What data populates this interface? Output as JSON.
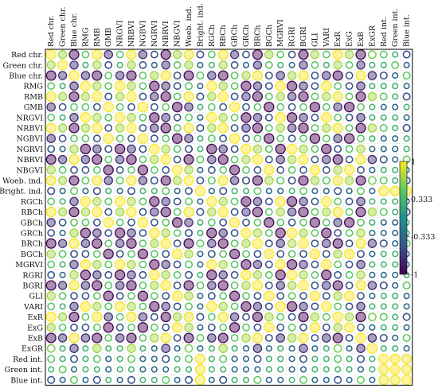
{
  "chart_data": {
    "type": "heatmap",
    "variables": [
      "Red chr.",
      "Green chr.",
      "Blue chr.",
      "RMG",
      "RMB",
      "GMB",
      "NRGVI",
      "NRBVI",
      "NGBVI",
      "NGRVI",
      "NBRVI",
      "NBGVI",
      "Woeb. ind.",
      "Bright. ind.",
      "RGCh",
      "RBCh",
      "GBCh",
      "GRCh",
      "BRCh",
      "BGCh",
      "MGRVI",
      "RGRI",
      "BGRI",
      "GLI",
      "VARI",
      "ExR",
      "ExG",
      "ExB",
      "ExGR",
      "Red int.",
      "Green int.",
      "Blue int."
    ],
    "color_scale": {
      "min": -1,
      "max": 1,
      "ticks": [
        1,
        0.333,
        -0.333,
        -1
      ],
      "tick_labels": [
        "1",
        "0.333",
        "-0.333",
        "-1"
      ],
      "colors": [
        "#440154",
        "#3b528b",
        "#21918c",
        "#5ec962",
        "#fde725"
      ]
    },
    "insignificant_marker": "×",
    "values": [
      [
        1,
        0.71,
        -0.97,
        0.47,
        0.97,
        -0.73,
        0.47,
        0.97,
        -0.73,
        -0.47,
        -0.97,
        0.73,
        0.95,
        -0.5,
        0.47,
        0.97,
        -0.71,
        -0.47,
        -0.97,
        0.73,
        0.47,
        -0.47,
        -0.97,
        0.73,
        0.47,
        1,
        0.73,
        -0.97,
        0.6,
        0.5,
        0.3,
        -0.5
      ],
      [
        0.71,
        1,
        -0.71,
        0.3,
        0.71,
        -0.47,
        0.3,
        0.71,
        -0.47,
        -0.3,
        -0.71,
        0.47,
        0.71,
        -0.3,
        0.3,
        0.71,
        -0.47,
        -0.3,
        -0.71,
        0.47,
        0.3,
        -0.3,
        -0.71,
        0.47,
        0.3,
        0.71,
        0.47,
        -0.71,
        0.3,
        0.3,
        0.5,
        -0.3
      ],
      [
        -0.97,
        -0.71,
        1,
        -0.73,
        -0.97,
        0.47,
        -0.73,
        -0.97,
        0.47,
        0.73,
        0.97,
        -0.47,
        -0.95,
        0.5,
        -0.73,
        -0.97,
        0.47,
        0.73,
        0.97,
        -0.47,
        -0.73,
        0.73,
        0.97,
        -0.47,
        -0.73,
        -0.97,
        -0.47,
        0.97,
        -0.73,
        -0.5,
        -0.3,
        0.5
      ],
      [
        0.47,
        0.3,
        -0.73,
        1,
        0.73,
        0.47,
        1,
        0.73,
        0.47,
        -1,
        -0.73,
        -0.47,
        0.5,
        -0.3,
        1,
        0.73,
        0.47,
        -1,
        -0.73,
        -0.47,
        1,
        -1,
        -0.73,
        -0.47,
        1,
        0.47,
        -0.47,
        -0.73,
        0.3,
        0.3,
        0.3,
        -0.3
      ],
      [
        0.97,
        0.71,
        -0.97,
        0.73,
        1,
        -0.47,
        0.73,
        1,
        -0.47,
        -0.73,
        -1,
        0.47,
        0.97,
        -0.5,
        0.73,
        1,
        -0.47,
        -0.73,
        -1,
        0.47,
        0.73,
        -0.73,
        -1,
        0.47,
        0.73,
        0.97,
        0.47,
        -0.97,
        0.73,
        0.5,
        0.3,
        -0.5
      ],
      [
        -0.73,
        -0.47,
        0.47,
        0.47,
        -0.47,
        1,
        0.47,
        -0.47,
        1,
        -0.47,
        0.47,
        -1,
        -0.73,
        0.3,
        0.47,
        -0.47,
        1,
        -0.47,
        0.47,
        -1,
        0.47,
        -0.47,
        0.47,
        -1,
        0.47,
        -0.73,
        -1,
        0.47,
        0.3,
        -0.3,
        -0.3,
        0.3
      ],
      [
        0.47,
        0.3,
        -0.73,
        1,
        0.73,
        0.47,
        1,
        0.73,
        0.47,
        -1,
        -0.73,
        -0.47,
        0.5,
        -0.3,
        1,
        0.73,
        0.47,
        -1,
        -0.73,
        -0.47,
        1,
        -1,
        -0.73,
        -0.47,
        1,
        0.47,
        -0.47,
        -0.73,
        0.3,
        0.3,
        0.3,
        -0.3
      ],
      [
        0.97,
        0.71,
        -0.97,
        0.73,
        1,
        -0.47,
        0.73,
        1,
        -0.47,
        -0.73,
        -1,
        0.47,
        0.97,
        -0.5,
        0.73,
        1,
        -0.47,
        -0.73,
        -1,
        0.47,
        0.73,
        -0.73,
        -1,
        0.47,
        0.73,
        0.97,
        0.47,
        -0.97,
        0.73,
        0.5,
        0.3,
        -0.5
      ],
      [
        -0.73,
        -0.47,
        0.47,
        0.47,
        -0.47,
        1,
        0.47,
        -0.47,
        1,
        -0.47,
        0.47,
        -1,
        -0.73,
        0.3,
        0.47,
        -0.47,
        1,
        -0.47,
        0.47,
        -1,
        0.47,
        -0.47,
        0.47,
        -1,
        0.47,
        -0.73,
        -1,
        0.47,
        0.3,
        -0.3,
        -0.3,
        0.3
      ],
      [
        -0.47,
        -0.3,
        0.73,
        -1,
        -0.73,
        -0.47,
        -1,
        -0.73,
        -0.47,
        1,
        0.73,
        0.47,
        -0.5,
        0.3,
        -1,
        -0.73,
        -0.47,
        1,
        0.73,
        0.47,
        -1,
        1,
        0.73,
        0.47,
        -1,
        -0.47,
        0.47,
        0.73,
        -0.3,
        -0.3,
        -0.3,
        0.3
      ],
      [
        -0.97,
        -0.71,
        0.97,
        -0.73,
        -1,
        0.47,
        -0.73,
        -1,
        0.47,
        0.73,
        1,
        -0.47,
        -0.97,
        0.5,
        -0.73,
        -1,
        0.47,
        0.73,
        1,
        -0.47,
        -0.73,
        0.73,
        1,
        -0.47,
        -0.73,
        -0.97,
        -0.47,
        0.97,
        -0.73,
        -0.5,
        -0.3,
        0.5
      ],
      [
        0.73,
        0.47,
        -0.47,
        -0.47,
        0.47,
        -1,
        -0.47,
        0.47,
        -1,
        0.47,
        -0.47,
        1,
        0.73,
        -0.3,
        -0.47,
        0.47,
        -1,
        0.47,
        -0.47,
        1,
        -0.47,
        0.47,
        -0.47,
        1,
        -0.47,
        0.73,
        1,
        -0.47,
        -0.3,
        0.3,
        0.3,
        -0.3
      ],
      [
        0.95,
        0.71,
        -0.95,
        0.5,
        0.97,
        -0.73,
        0.5,
        0.97,
        -0.73,
        -0.5,
        -0.97,
        0.73,
        1,
        -0.47,
        0.5,
        0.97,
        -0.73,
        -0.5,
        -0.97,
        0.73,
        0.5,
        -0.5,
        -0.97,
        0.73,
        0.5,
        0.95,
        0.73,
        -0.95,
        0.6,
        0.5,
        0.3,
        -0.5
      ],
      [
        -0.5,
        -0.3,
        0.5,
        -0.3,
        -0.5,
        0.3,
        -0.3,
        -0.5,
        0.3,
        0.3,
        0.5,
        -0.3,
        -0.47,
        1,
        -0.3,
        -0.5,
        0.3,
        0.3,
        0.5,
        -0.3,
        -0.3,
        0.3,
        0.5,
        -0.3,
        -0.3,
        -0.5,
        -0.3,
        0.5,
        -0.3,
        0.97,
        0.97,
        0.97
      ],
      [
        0.47,
        0.3,
        -0.73,
        1,
        0.73,
        0.47,
        1,
        0.73,
        0.47,
        -1,
        -0.73,
        -0.47,
        0.5,
        -0.3,
        1,
        0.73,
        0.47,
        -1,
        -0.73,
        -0.47,
        1,
        -1,
        -0.73,
        -0.47,
        1,
        0.47,
        -0.47,
        -0.73,
        0.3,
        0.3,
        0.3,
        -0.3
      ],
      [
        0.97,
        0.71,
        -0.97,
        0.73,
        1,
        -0.47,
        0.73,
        1,
        -0.47,
        -0.73,
        -1,
        0.47,
        0.97,
        -0.5,
        0.73,
        1,
        -0.47,
        -0.73,
        -1,
        0.47,
        0.73,
        -0.73,
        -1,
        0.47,
        0.73,
        0.97,
        0.47,
        -0.97,
        0.73,
        0.5,
        0.3,
        -0.5
      ],
      [
        -0.71,
        -0.47,
        0.47,
        0.47,
        -0.47,
        1,
        0.47,
        -0.47,
        1,
        -0.47,
        0.47,
        -1,
        -0.73,
        0.3,
        0.47,
        -0.47,
        1,
        -0.47,
        0.47,
        -1,
        0.47,
        -0.47,
        0.47,
        -1,
        0.47,
        -0.73,
        -1,
        0.47,
        0.3,
        -0.3,
        -0.3,
        0.3
      ],
      [
        -0.47,
        -0.3,
        0.73,
        -1,
        -0.73,
        -0.47,
        -1,
        -0.73,
        -0.47,
        1,
        0.73,
        0.47,
        -0.5,
        0.3,
        -1,
        -0.73,
        -0.47,
        1,
        0.73,
        0.47,
        -1,
        1,
        0.73,
        0.47,
        -1,
        -0.47,
        0.47,
        0.73,
        -0.3,
        -0.3,
        -0.3,
        0.3
      ],
      [
        -0.97,
        -0.71,
        0.97,
        -0.73,
        -1,
        0.47,
        -0.73,
        -1,
        0.47,
        0.73,
        1,
        -0.47,
        -0.97,
        0.5,
        -0.73,
        -1,
        0.47,
        0.73,
        1,
        -0.47,
        -0.73,
        0.73,
        1,
        -0.47,
        -0.73,
        -0.97,
        -0.47,
        0.97,
        -0.73,
        -0.5,
        -0.3,
        0.5
      ],
      [
        0.73,
        0.47,
        -0.47,
        -0.47,
        0.47,
        -1,
        -0.47,
        0.47,
        -1,
        0.47,
        -0.47,
        1,
        0.73,
        -0.3,
        -0.47,
        0.47,
        -1,
        0.47,
        -0.47,
        1,
        -0.47,
        0.47,
        -0.47,
        1,
        -0.47,
        0.73,
        1,
        -0.47,
        -0.3,
        0.3,
        0.3,
        -0.3
      ],
      [
        0.47,
        0.3,
        -0.73,
        1,
        0.73,
        0.47,
        1,
        0.73,
        0.47,
        -1,
        -0.73,
        -0.47,
        0.5,
        -0.3,
        1,
        0.73,
        0.47,
        -1,
        -0.73,
        -0.47,
        1,
        -1,
        -0.73,
        -0.47,
        1,
        0.47,
        -0.47,
        -0.73,
        0.3,
        0.3,
        0.3,
        -0.3
      ],
      [
        -0.47,
        -0.3,
        0.73,
        -1,
        -0.73,
        -0.47,
        -1,
        -0.73,
        -0.47,
        1,
        0.73,
        0.47,
        -0.5,
        0.3,
        -1,
        -0.73,
        -0.47,
        1,
        0.73,
        0.47,
        -1,
        1,
        0.73,
        0.47,
        -1,
        -0.47,
        0.47,
        0.73,
        -0.3,
        -0.3,
        -0.3,
        0.3
      ],
      [
        -0.97,
        -0.71,
        0.97,
        -0.73,
        -1,
        0.47,
        -0.73,
        -1,
        0.47,
        0.73,
        1,
        -0.47,
        -0.97,
        0.5,
        -0.73,
        -1,
        0.47,
        0.73,
        1,
        -0.47,
        -0.73,
        0.73,
        1,
        -0.47,
        -0.73,
        -0.97,
        -0.47,
        0.97,
        -0.73,
        -0.5,
        -0.3,
        0.5
      ],
      [
        0.73,
        0.47,
        -0.47,
        -0.47,
        0.47,
        -1,
        -0.47,
        0.47,
        -1,
        0.47,
        -0.47,
        1,
        0.73,
        -0.3,
        -0.47,
        0.47,
        -1,
        0.47,
        -0.47,
        1,
        -0.47,
        0.47,
        -0.47,
        1,
        -0.47,
        0.73,
        1,
        -0.47,
        -0.3,
        0.3,
        0.3,
        -0.3
      ],
      [
        0.47,
        0.3,
        -0.73,
        1,
        0.73,
        0.47,
        1,
        0.73,
        0.47,
        -1,
        -0.73,
        -0.47,
        0.5,
        -0.3,
        1,
        0.73,
        0.47,
        -1,
        -0.73,
        -0.47,
        1,
        -1,
        -0.73,
        -0.47,
        1,
        0.47,
        -0.47,
        -0.73,
        0.3,
        0.3,
        0.3,
        -0.3
      ],
      [
        1,
        0.71,
        -0.97,
        0.47,
        0.97,
        -0.73,
        0.47,
        0.97,
        -0.73,
        -0.47,
        -0.97,
        0.73,
        0.95,
        -0.5,
        0.47,
        0.97,
        -0.73,
        -0.47,
        -0.97,
        0.73,
        0.47,
        -0.47,
        -0.97,
        0.73,
        0.47,
        1,
        0.73,
        -0.97,
        0.6,
        0.5,
        0.3,
        -0.5
      ],
      [
        0.73,
        0.47,
        -0.47,
        -0.47,
        0.47,
        -1,
        -0.47,
        0.47,
        -1,
        0.47,
        -0.47,
        1,
        0.73,
        -0.3,
        -0.47,
        0.47,
        -1,
        0.47,
        -0.47,
        1,
        -0.47,
        0.47,
        -0.47,
        1,
        -0.47,
        0.73,
        1,
        -0.47,
        -0.3,
        0.3,
        0.3,
        -0.3
      ],
      [
        -0.97,
        -0.71,
        0.97,
        -0.73,
        -0.97,
        0.47,
        -0.73,
        -0.97,
        0.47,
        0.73,
        0.97,
        -0.47,
        -0.95,
        0.5,
        -0.73,
        -0.97,
        0.47,
        0.73,
        0.97,
        -0.47,
        -0.73,
        0.73,
        0.97,
        -0.47,
        -0.73,
        -0.97,
        -0.47,
        1,
        -0.73,
        -0.5,
        -0.3,
        0.5
      ],
      [
        0.6,
        0.3,
        -0.73,
        0.3,
        0.73,
        0.3,
        0.3,
        0.73,
        0.3,
        -0.3,
        -0.73,
        -0.3,
        0.6,
        -0.3,
        0.3,
        0.73,
        0.3,
        -0.3,
        -0.73,
        -0.3,
        0.3,
        -0.3,
        -0.73,
        -0.3,
        0.3,
        0.6,
        -0.3,
        -0.73,
        1,
        0.3,
        0.3,
        -0.3
      ],
      [
        0.5,
        0.3,
        -0.5,
        0.3,
        0.5,
        -0.3,
        0.3,
        0.5,
        -0.3,
        -0.3,
        -0.5,
        0.3,
        0.5,
        0.97,
        0.3,
        0.5,
        -0.3,
        -0.3,
        -0.5,
        0.3,
        0.3,
        -0.3,
        -0.5,
        0.3,
        0.3,
        0.5,
        0.3,
        -0.5,
        0.3,
        1,
        0.97,
        0.95
      ],
      [
        0.3,
        0.5,
        -0.3,
        0.3,
        0.3,
        -0.3,
        0.3,
        0.3,
        -0.3,
        -0.3,
        -0.3,
        0.3,
        0.3,
        0.97,
        0.3,
        0.3,
        -0.3,
        -0.3,
        -0.3,
        0.3,
        0.3,
        -0.3,
        -0.3,
        0.3,
        0.3,
        0.3,
        0.3,
        -0.3,
        0.3,
        0.97,
        1,
        0.97
      ],
      [
        -0.5,
        -0.3,
        0.5,
        -0.3,
        -0.5,
        0.3,
        -0.3,
        -0.5,
        0.3,
        0.3,
        0.5,
        -0.3,
        -0.5,
        0.97,
        -0.3,
        -0.5,
        0.3,
        0.3,
        0.5,
        -0.3,
        -0.3,
        0.3,
        0.5,
        -0.3,
        -0.3,
        -0.5,
        -0.3,
        0.5,
        -0.3,
        0.95,
        0.97,
        1
      ]
    ]
  }
}
